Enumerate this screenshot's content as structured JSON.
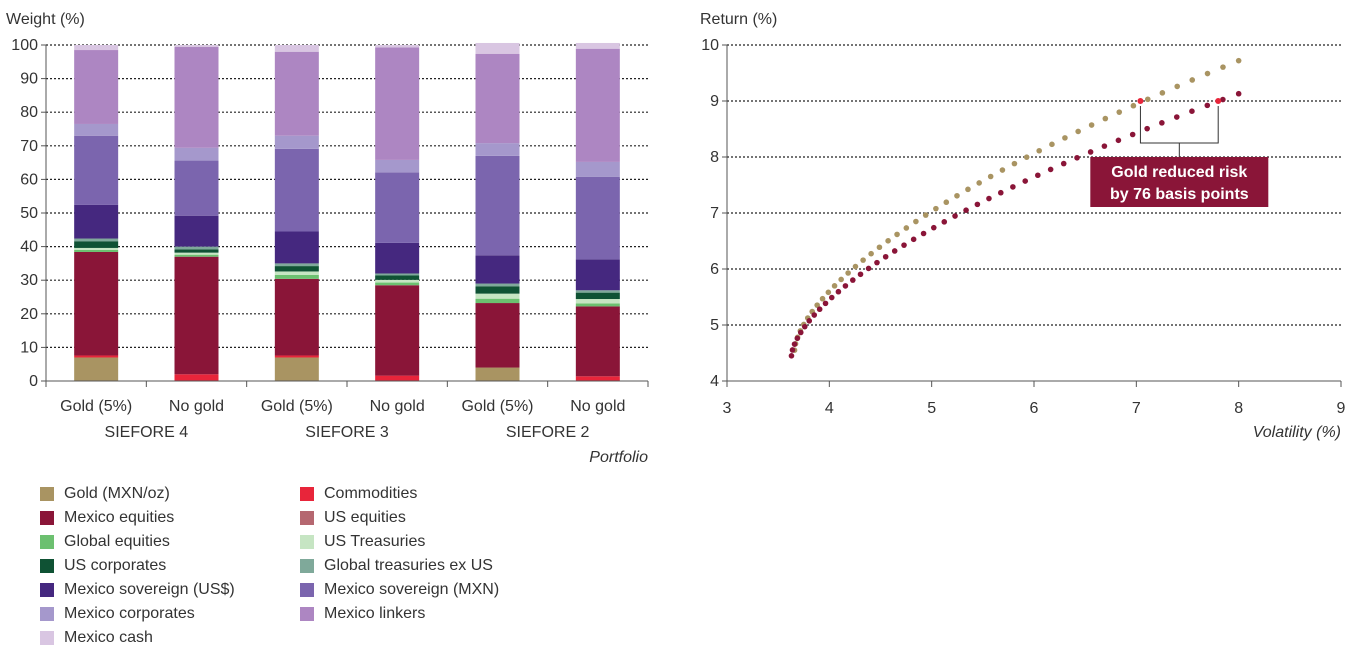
{
  "chart_data": [
    {
      "type": "bar",
      "stacked": true,
      "ylabel": "Weight (%)",
      "xlabel": "Portfolio",
      "ylim": [
        0,
        100
      ],
      "yticks": [
        0,
        10,
        20,
        30,
        40,
        50,
        60,
        70,
        80,
        90,
        100
      ],
      "grid": true,
      "groups": [
        "SIEFORE 4",
        "SIEFORE 3",
        "SIEFORE 2"
      ],
      "categories": [
        "Gold (5%)",
        "No gold",
        "Gold (5%)",
        "No gold",
        "Gold (5%)",
        "No gold"
      ],
      "category_group": [
        0,
        0,
        1,
        1,
        2,
        2
      ],
      "legend_placement": "bottom",
      "series": [
        {
          "name": "Gold (MXN/oz)",
          "color": "#A99462",
          "values": [
            7,
            0,
            7,
            0,
            4,
            0
          ]
        },
        {
          "name": "Commodities",
          "color": "#E8253A",
          "values": [
            0.6,
            2,
            0.6,
            1.6,
            0,
            1.4
          ]
        },
        {
          "name": "Mexico equities",
          "color": "#8A1538",
          "values": [
            30.8,
            35,
            22.8,
            26.9,
            19.2,
            20.8
          ]
        },
        {
          "name": "US equities",
          "color": "#B56770",
          "values": [
            0,
            0,
            0,
            0,
            0,
            0
          ]
        },
        {
          "name": "Global equities",
          "color": "#6CC070",
          "values": [
            0.6,
            0.6,
            1.2,
            0.8,
            1.3,
            0.9
          ]
        },
        {
          "name": "US Treasuries",
          "color": "#C6E5C3",
          "values": [
            0.6,
            0.6,
            1,
            0.8,
            1.5,
            1.3
          ]
        },
        {
          "name": "US corporates",
          "color": "#0F5234",
          "values": [
            2,
            1,
            1.6,
            1.3,
            2.2,
            1.9
          ]
        },
        {
          "name": "Global treasuries ex US",
          "color": "#7FA99A",
          "values": [
            0.8,
            0.8,
            0.8,
            0.6,
            0.8,
            0.7
          ]
        },
        {
          "name": "Mexico sovereign (US$)",
          "color": "#45287F",
          "values": [
            10,
            9.2,
            9.5,
            9.1,
            8.4,
            9.2
          ]
        },
        {
          "name": "Mexico sovereign (MXN)",
          "color": "#7B65AE",
          "values": [
            20.6,
            16.4,
            24.6,
            21,
            29.6,
            24.6
          ]
        },
        {
          "name": "Mexico corporates",
          "color": "#A598CC",
          "values": [
            3.5,
            3.8,
            3.9,
            3.7,
            3.8,
            4.4
          ]
        },
        {
          "name": "Mexico linkers",
          "color": "#AD86C2",
          "values": [
            22,
            30,
            25,
            33.5,
            26.6,
            33.7
          ]
        },
        {
          "name": "Mexico cash",
          "color": "#D9C6E2",
          "values": [
            1.5,
            0.6,
            2,
            0.7,
            3.2,
            1.7
          ]
        }
      ]
    },
    {
      "type": "scatter",
      "ylabel": "Return (%)",
      "xlabel": "Volatility (%)",
      "xlim": [
        3,
        9
      ],
      "ylim": [
        4,
        10
      ],
      "xticks": [
        3,
        4,
        5,
        6,
        7,
        8,
        9
      ],
      "yticks": [
        4,
        5,
        6,
        7,
        8,
        9,
        10
      ],
      "grid": true,
      "series": [
        {
          "color": "#A99462",
          "x_start": 3.66,
          "x_end": 8.0,
          "y_start": 4.55,
          "y_end": 9.72,
          "points": 46
        },
        {
          "color": "#8A1538",
          "x_start": 3.63,
          "x_end": 8.0,
          "y_start": 4.45,
          "y_end": 9.13,
          "points": 46
        }
      ],
      "highlight_points": [
        {
          "x": 7.04,
          "y": 9.0
        },
        {
          "x": 7.8,
          "y": 9.0
        }
      ],
      "highlight_color": "#E8253A",
      "annotation": {
        "line1": "Gold reduced risk",
        "line2": "by 76 basis points",
        "bg": "#8A1538",
        "color": "#ffffff"
      }
    }
  ]
}
